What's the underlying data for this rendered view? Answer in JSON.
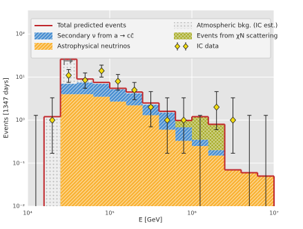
{
  "chart_data": {
    "type": "stacked-histogram",
    "x_label": "E [GeV]",
    "y_label": "Events [1347 days]",
    "log_x": true,
    "log_y": true,
    "grid": true,
    "legend_position": "upper center",
    "bins": [
      10000,
      15849,
      25119,
      39811,
      63096,
      100000,
      158489,
      251189,
      398107,
      630957,
      1000000,
      1584893,
      2511886,
      3981072,
      6309573,
      10000000
    ],
    "xlim": [
      10000,
      10000000
    ],
    "ylim": [
      0.01,
      355
    ],
    "xticks": [
      {
        "value": 10000,
        "label": "10⁴"
      },
      {
        "value": 100000,
        "label": "10⁵"
      },
      {
        "value": 1000000,
        "label": "10⁶"
      },
      {
        "value": 10000000,
        "label": "10⁷"
      }
    ],
    "yticks": [
      {
        "value": 0.01,
        "label": "10⁻²"
      },
      {
        "value": 0.1,
        "label": "10⁻¹"
      },
      {
        "value": 1,
        "label": "10⁰"
      },
      {
        "value": 10,
        "label": "10¹"
      },
      {
        "value": 100,
        "label": "10²"
      }
    ],
    "series": [
      {
        "name": "Astrophysical neutrinos",
        "color": "#f9b233",
        "hatch": "/",
        "values": [
          null,
          null,
          4,
          4,
          3.5,
          2.7,
          2.2,
          1.3,
          0.6,
          0.33,
          0.25,
          0.15,
          0.07,
          0.06,
          0.05
        ]
      },
      {
        "name": "Secondary ν from a → cc̄",
        "color": "#4a8fd0",
        "hatch": "/",
        "values": [
          null,
          null,
          3,
          3.5,
          3.5,
          2.5,
          2,
          1,
          0.9,
          0.35,
          0.1,
          0.05,
          null,
          null,
          null
        ]
      },
      {
        "name": "Events from χN scattering",
        "color": "#a9ad2a",
        "hatch": "x",
        "values": [
          null,
          null,
          null,
          null,
          null,
          null,
          null,
          null,
          null,
          0.3,
          0.85,
          0.6,
          null,
          null,
          null
        ]
      },
      {
        "name": "Atmospheric bkg. (IC est.)",
        "color": "#b8b8b8",
        "hatch": ".",
        "values": [
          null,
          1.2,
          19,
          1.5,
          0.5,
          0.3,
          0.3,
          0.2,
          0.1,
          null,
          null,
          null,
          null,
          null,
          null
        ]
      }
    ],
    "total": {
      "name": "Total predicted events",
      "color": "#c0282d",
      "values": [
        null,
        1.2,
        26,
        9,
        7.5,
        5.5,
        4.5,
        2.5,
        1.6,
        0.98,
        1.2,
        0.8,
        0.07,
        0.06,
        0.05
      ]
    },
    "data_points": {
      "name": "IC data",
      "color": "#f2dc12",
      "x": [
        12589,
        19953,
        31623,
        50119,
        79433,
        125893,
        199526,
        316228,
        501187,
        794328,
        1258925,
        1995262,
        3162278,
        5011872,
        7943282
      ],
      "values": [
        null,
        1,
        11,
        8.5,
        14,
        8,
        5,
        2,
        1,
        1,
        null,
        2,
        1,
        null,
        null
      ],
      "err_low": [
        null,
        0.17,
        7.5,
        5.5,
        10,
        5,
        3,
        0.7,
        0.17,
        0.17,
        null,
        0.6,
        0.17,
        null,
        null
      ],
      "err_high": [
        1.29,
        3.3,
        15,
        12.5,
        19,
        11.5,
        7.5,
        4.6,
        3.3,
        3.3,
        1.29,
        4.6,
        3.3,
        1.29,
        1.29
      ]
    }
  }
}
